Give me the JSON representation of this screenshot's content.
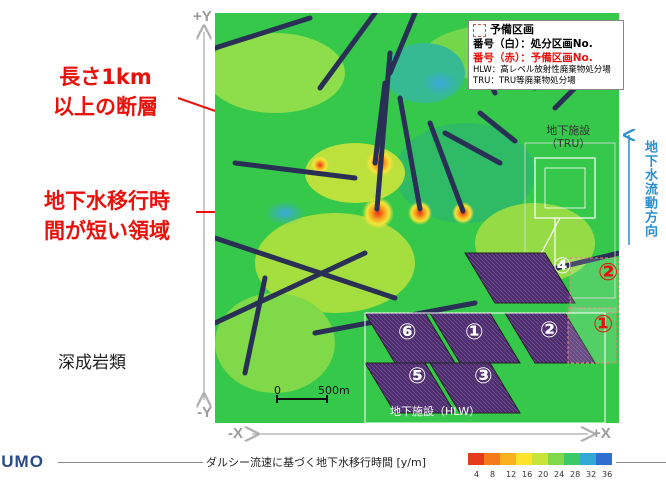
{
  "axes": {
    "plus_y": "+Y",
    "minus_y": "-Y",
    "minus_x": "-X",
    "plus_x": "+X"
  },
  "annotations": {
    "fault_line1": "長さ1km",
    "fault_line2": "以上の断層",
    "short_time_line1": "地下水移行時",
    "short_time_line2": "間が短い領域",
    "rock_type": "深成岩類",
    "flow_direction": "地下水流動方向"
  },
  "legend": {
    "reserve_zone": "予備区画",
    "white_number": "番号（白）：処分区画No.",
    "red_number": "番号（赤）：予備区画No.",
    "hlw_note": "HLW：高レベル放射性廃棄物処分場",
    "tru_note": "TRU：TRU等廃棄物処分場"
  },
  "facilities": {
    "tru_label_1": "地下施設",
    "tru_label_2": "（TRU）",
    "hlw_label": "地下施設（HLW）",
    "panels": [
      "⑥",
      "①",
      "②",
      "⑤",
      "③",
      "④"
    ],
    "reserve_panels": [
      "①",
      "②"
    ]
  },
  "scale_bar": {
    "zero": "0",
    "length": "500m"
  },
  "footer": {
    "logo": "NUMO",
    "colorbar_title": "ダルシー流速に基づく地下水移行時間 [y/m]",
    "colorbar_ticks": [
      "4",
      "8",
      "12",
      "16",
      "20",
      "24",
      "28",
      "32",
      "36"
    ],
    "colorbar_colors": [
      "#e63a1c",
      "#f47a1d",
      "#f9b21e",
      "#fde42a",
      "#c8e33a",
      "#7fd94a",
      "#3cc96a",
      "#33a9d8",
      "#2f6fd0"
    ]
  },
  "colors": {
    "accent_red": "#e8120c",
    "flow_blue": "#2a8fd0",
    "map_green": "#35c84a",
    "panel_purple": "#4a2a6a"
  }
}
